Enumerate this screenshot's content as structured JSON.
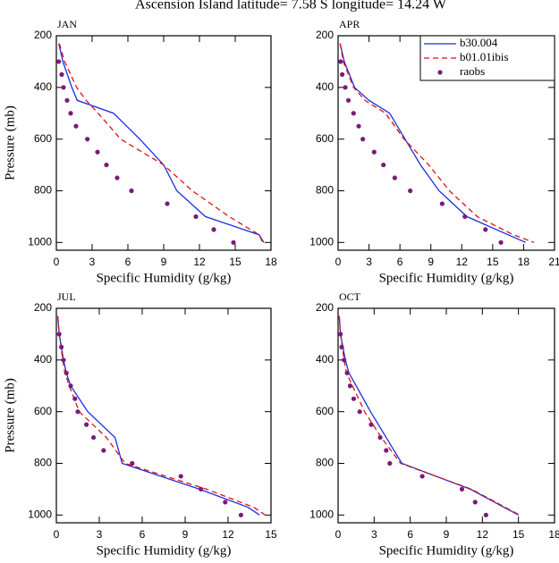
{
  "title": "Ascension Island  latitude= 7.58 S longitude= 14.24 W",
  "chart_data": [
    {
      "type": "line",
      "title": "JAN",
      "xlabel": "Specific Humidity (g/kg)",
      "ylabel": "Pressure (mb)",
      "xlim": [
        0,
        18
      ],
      "xticks": [
        0,
        3,
        6,
        9,
        12,
        15,
        18
      ],
      "ylim": [
        1030,
        200
      ],
      "yticks": [
        200,
        400,
        600,
        800,
        1000
      ],
      "series": [
        {
          "name": "b30.004",
          "color": "#1a2ee0",
          "style": "solid",
          "y": [
            230,
            300,
            400,
            450,
            500,
            600,
            700,
            800,
            900,
            970,
            1000
          ],
          "values": [
            0.2,
            0.55,
            1.3,
            1.75,
            4.8,
            7.0,
            9.0,
            10.1,
            12.5,
            17.0,
            17.4
          ]
        },
        {
          "name": "b01.01ibis",
          "color": "#e01010",
          "style": "dashed",
          "y": [
            230,
            300,
            400,
            450,
            500,
            600,
            700,
            800,
            900,
            970,
            1000
          ],
          "values": [
            0.25,
            0.7,
            1.7,
            2.5,
            3.5,
            5.4,
            9.0,
            11.4,
            14.5,
            17.0,
            17.3
          ]
        },
        {
          "name": "raobs",
          "color": "#7a1a7a",
          "style": "dots",
          "y": [
            300,
            350,
            400,
            450,
            500,
            550,
            600,
            650,
            700,
            750,
            800,
            850,
            900,
            950,
            1000
          ],
          "values": [
            0.2,
            0.45,
            0.6,
            0.9,
            1.2,
            1.65,
            2.6,
            3.45,
            4.2,
            5.1,
            6.3,
            9.3,
            11.7,
            13.2,
            14.85
          ]
        }
      ]
    },
    {
      "type": "line",
      "title": "APR",
      "xlabel": "Specific Humidity (g/kg)",
      "legend": "upper right",
      "xlim": [
        0,
        21
      ],
      "xticks": [
        0,
        3,
        6,
        9,
        12,
        15,
        18,
        21
      ],
      "ylim": [
        1030,
        200
      ],
      "yticks": [
        200,
        400,
        600,
        800,
        1000
      ],
      "series": [
        {
          "name": "b30.004",
          "color": "#1a2ee0",
          "style": "solid",
          "y": [
            230,
            300,
            400,
            450,
            500,
            600,
            700,
            800,
            900,
            970,
            1000
          ],
          "values": [
            0.2,
            0.6,
            1.6,
            3.0,
            5.0,
            6.5,
            8.0,
            9.8,
            12.5,
            16.5,
            18.2
          ]
        },
        {
          "name": "b01.01ibis",
          "color": "#e01010",
          "style": "dashed",
          "y": [
            230,
            300,
            400,
            450,
            500,
            600,
            700,
            800,
            900,
            970,
            1000
          ],
          "values": [
            0.2,
            0.5,
            1.5,
            2.6,
            4.6,
            6.4,
            8.8,
            10.8,
            13.5,
            17.0,
            19.0
          ]
        },
        {
          "name": "raobs",
          "color": "#7a1a7a",
          "style": "dots",
          "y": [
            300,
            350,
            400,
            450,
            500,
            550,
            600,
            650,
            700,
            750,
            800,
            850,
            900,
            950,
            1000
          ],
          "values": [
            0.25,
            0.4,
            0.7,
            1.0,
            1.5,
            2.0,
            2.4,
            3.5,
            4.4,
            5.5,
            7.0,
            10.1,
            12.3,
            14.3,
            15.8
          ]
        }
      ]
    },
    {
      "type": "line",
      "title": "JUL",
      "xlabel": "Specific Humidity (g/kg)",
      "ylabel": "Pressure (mb)",
      "xlim": [
        0,
        15
      ],
      "xticks": [
        0,
        3,
        6,
        9,
        12,
        15
      ],
      "ylim": [
        1030,
        200
      ],
      "yticks": [
        200,
        400,
        600,
        800,
        1000
      ],
      "series": [
        {
          "name": "b30.004",
          "color": "#1a2ee0",
          "style": "solid",
          "y": [
            230,
            300,
            400,
            450,
            500,
            600,
            700,
            800,
            900,
            970,
            1000
          ],
          "values": [
            0.1,
            0.2,
            0.5,
            0.7,
            1.0,
            2.2,
            4.1,
            4.6,
            10.0,
            13.4,
            14.2
          ]
        },
        {
          "name": "b01.01ibis",
          "color": "#e01010",
          "style": "dashed",
          "y": [
            230,
            300,
            400,
            450,
            500,
            600,
            700,
            800,
            900,
            970,
            1000
          ],
          "values": [
            0.1,
            0.2,
            0.45,
            0.6,
            0.9,
            1.6,
            3.5,
            4.8,
            10.5,
            13.8,
            14.6
          ]
        },
        {
          "name": "raobs",
          "color": "#7a1a7a",
          "style": "dots",
          "y": [
            300,
            350,
            400,
            450,
            500,
            550,
            600,
            650,
            700,
            750,
            800,
            850,
            900,
            950,
            1000
          ],
          "values": [
            0.2,
            0.35,
            0.5,
            0.7,
            1.0,
            1.3,
            1.5,
            2.1,
            2.6,
            3.3,
            5.3,
            8.7,
            10.1,
            11.8,
            12.9
          ]
        }
      ]
    },
    {
      "type": "line",
      "title": "OCT",
      "xlabel": "Specific Humidity (g/kg)",
      "xlim": [
        0,
        18
      ],
      "xticks": [
        0,
        3,
        6,
        9,
        12,
        15,
        18
      ],
      "ylim": [
        1030,
        200
      ],
      "yticks": [
        200,
        400,
        600,
        800,
        1000
      ],
      "series": [
        {
          "name": "b30.004",
          "color": "#1a2ee0",
          "style": "solid",
          "y": [
            230,
            300,
            400,
            450,
            500,
            600,
            700,
            800,
            900,
            970,
            1000
          ],
          "values": [
            0.1,
            0.2,
            0.6,
            0.9,
            1.5,
            2.7,
            4.0,
            5.3,
            11.0,
            13.8,
            15.0
          ]
        },
        {
          "name": "b01.01ibis",
          "color": "#e01010",
          "style": "dashed",
          "y": [
            230,
            300,
            400,
            450,
            500,
            600,
            700,
            800,
            900,
            970,
            1000
          ],
          "values": [
            0.1,
            0.2,
            0.5,
            0.7,
            1.2,
            2.2,
            3.6,
            5.2,
            11.1,
            13.9,
            15.1
          ]
        },
        {
          "name": "raobs",
          "color": "#7a1a7a",
          "style": "dots",
          "y": [
            300,
            350,
            400,
            450,
            500,
            550,
            600,
            650,
            700,
            750,
            800,
            850,
            900,
            950,
            1000
          ],
          "values": [
            0.2,
            0.3,
            0.5,
            0.75,
            1.0,
            1.3,
            1.8,
            2.75,
            3.5,
            4.0,
            4.3,
            7.0,
            10.3,
            11.4,
            12.3
          ]
        }
      ]
    }
  ]
}
